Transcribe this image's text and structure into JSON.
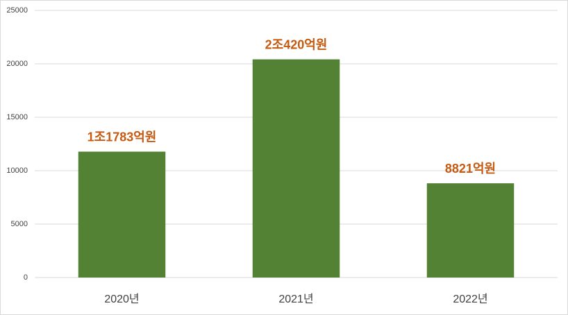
{
  "chart_data": {
    "type": "bar",
    "categories": [
      "2020년",
      "2021년",
      "2022년"
    ],
    "values": [
      11783,
      20420,
      8821
    ],
    "value_labels": [
      "1조1783억원",
      "2조420억원",
      "8821억원"
    ],
    "color": "#548235",
    "label_color": "#c55a11",
    "ylim": [
      0,
      25000
    ],
    "yticks": [
      0,
      5000,
      10000,
      15000,
      20000,
      25000
    ],
    "grid": true
  }
}
